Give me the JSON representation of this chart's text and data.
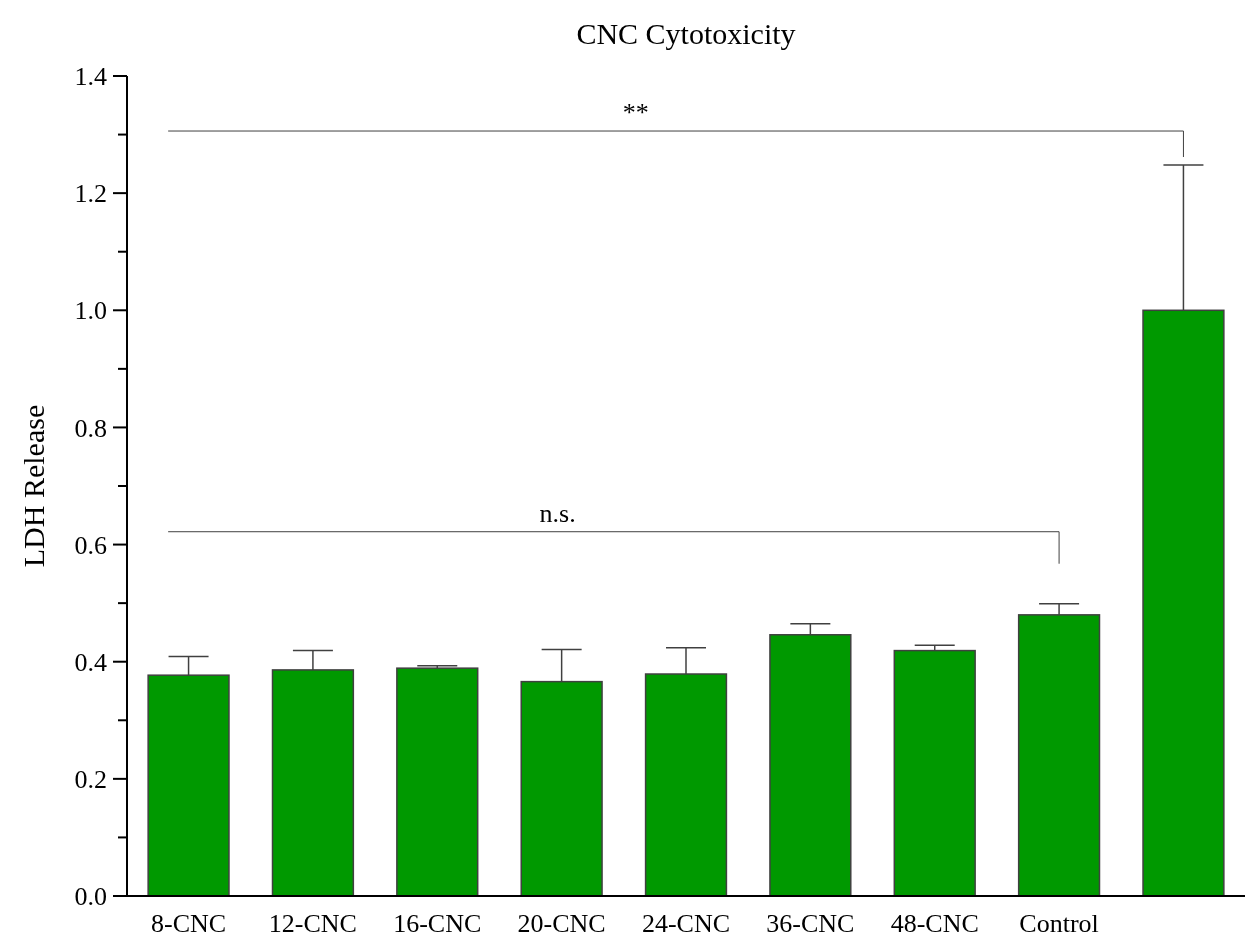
{
  "chart_data": {
    "type": "bar",
    "title": "CNC Cytotoxicity",
    "ylabel": "LDH Release",
    "categories": [
      "8-CNC",
      "12-CNC",
      "16-CNC",
      "20-CNC",
      "24-CNC",
      "36-CNC",
      "48-CNC",
      "Control",
      null
    ],
    "values": [
      0.377,
      0.386,
      0.389,
      0.366,
      0.379,
      0.446,
      0.419,
      0.48,
      1.0
    ],
    "errors": [
      0.032,
      0.033,
      0.004,
      0.055,
      0.045,
      0.019,
      0.009,
      0.019,
      0.248
    ],
    "color": "#009900",
    "ylim": [
      0,
      1.4
    ],
    "yticks": [
      {
        "value": 0,
        "label": "0.0"
      },
      {
        "value": 0.2,
        "label": "0.2"
      },
      {
        "value": 0.4,
        "label": "0.4"
      },
      {
        "value": 0.6,
        "label": "0.6"
      },
      {
        "value": 0.8,
        "label": "0.8"
      },
      {
        "value": 1,
        "label": "1.0"
      },
      {
        "value": 1.2,
        "label": "1.2"
      },
      {
        "value": 1.4,
        "label": "1.4"
      }
    ],
    "annotations": [
      "**",
      "n.s."
    ],
    "grid": false
  }
}
